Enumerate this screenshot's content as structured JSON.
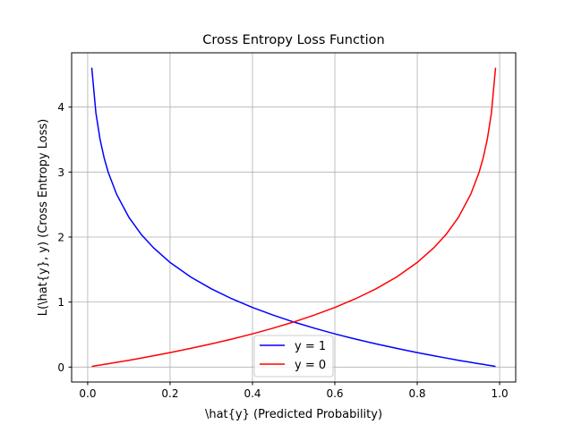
{
  "chart_data": {
    "type": "line",
    "title": "Cross Entropy Loss Function",
    "xlabel": "\\hat{y} (Predicted Probability)",
    "ylabel": "L(\\hat{y}, y) (Cross Entropy Loss)",
    "xlim": [
      -0.039,
      1.039
    ],
    "ylim": [
      -0.23,
      4.835
    ],
    "grid": true,
    "legend_position": "lower center",
    "xticks": [
      0.0,
      0.2,
      0.4,
      0.6,
      0.8,
      1.0
    ],
    "xtick_labels": [
      "0.0",
      "0.2",
      "0.4",
      "0.6",
      "0.8",
      "1.0"
    ],
    "yticks": [
      0,
      1,
      2,
      3,
      4
    ],
    "ytick_labels": [
      "0",
      "1",
      "2",
      "3",
      "4"
    ],
    "x": [
      0.01,
      0.02,
      0.03,
      0.04,
      0.05,
      0.07,
      0.1,
      0.13,
      0.16,
      0.2,
      0.25,
      0.3,
      0.35,
      0.4,
      0.45,
      0.5,
      0.55,
      0.6,
      0.65,
      0.7,
      0.75,
      0.8,
      0.84,
      0.87,
      0.9,
      0.93,
      0.95,
      0.96,
      0.97,
      0.98,
      0.99
    ],
    "series": [
      {
        "name": "y = 1",
        "color": "#0000ff",
        "values": [
          4.605,
          3.912,
          3.507,
          3.219,
          2.996,
          2.659,
          2.303,
          2.04,
          1.833,
          1.609,
          1.386,
          1.204,
          1.05,
          0.916,
          0.799,
          0.693,
          0.598,
          0.511,
          0.431,
          0.357,
          0.288,
          0.223,
          0.174,
          0.139,
          0.105,
          0.073,
          0.051,
          0.041,
          0.03,
          0.02,
          0.01
        ]
      },
      {
        "name": "y = 0",
        "color": "#ff0000",
        "values": [
          0.01,
          0.02,
          0.03,
          0.041,
          0.051,
          0.073,
          0.105,
          0.139,
          0.174,
          0.223,
          0.288,
          0.357,
          0.431,
          0.511,
          0.598,
          0.693,
          0.799,
          0.916,
          1.05,
          1.204,
          1.386,
          1.609,
          1.833,
          2.04,
          2.303,
          2.659,
          2.996,
          3.219,
          3.507,
          3.912,
          4.605
        ]
      }
    ]
  }
}
